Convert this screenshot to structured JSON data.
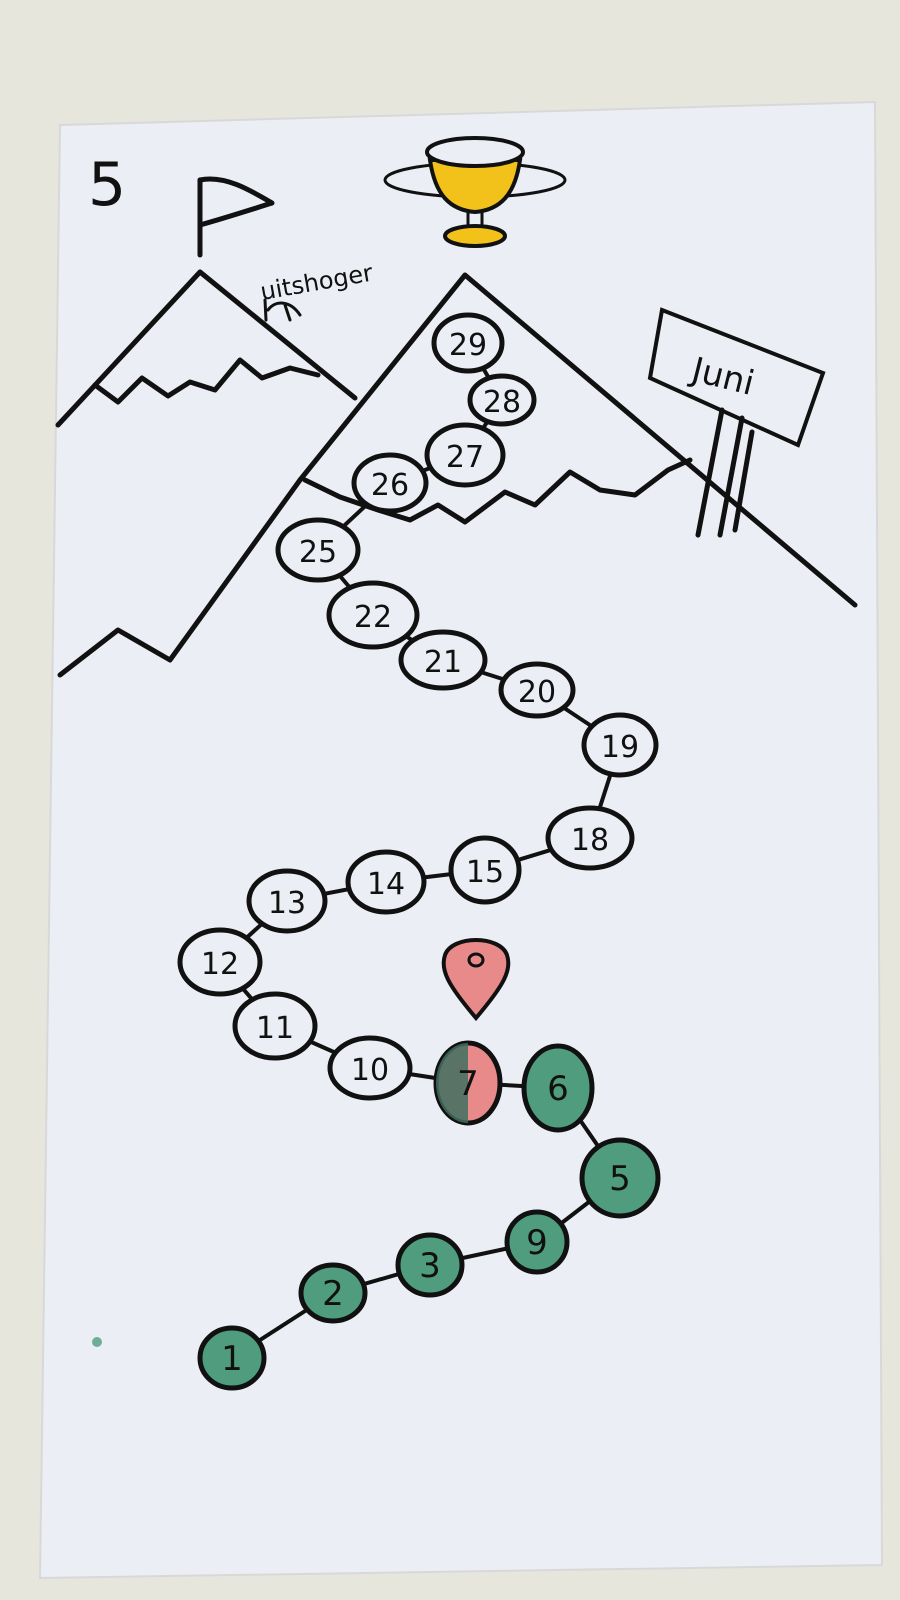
{
  "card": {
    "number": "5",
    "scribble_label": "uitshoger",
    "sign_text": "Juni"
  },
  "colors": {
    "paper": "#eceef5",
    "background": "#e7e6dd",
    "ink": "#111111",
    "done": "#4f9d7e",
    "current": "#e88a8a",
    "trophy": "#f2c21b"
  },
  "icons": {
    "flag": "flag-icon",
    "trophy": "trophy-icon",
    "pin": "map-pin-icon",
    "sign": "signpost-icon"
  },
  "path": {
    "steps": [
      {
        "label": "1",
        "state": "done"
      },
      {
        "label": "2",
        "state": "done"
      },
      {
        "label": "3",
        "state": "done"
      },
      {
        "label": "9",
        "state": "done"
      },
      {
        "label": "5",
        "state": "done"
      },
      {
        "label": "6",
        "state": "done"
      },
      {
        "label": "7",
        "state": "current"
      },
      {
        "label": "10",
        "state": "open"
      },
      {
        "label": "11",
        "state": "open"
      },
      {
        "label": "12",
        "state": "open"
      },
      {
        "label": "13",
        "state": "open"
      },
      {
        "label": "14",
        "state": "open"
      },
      {
        "label": "15",
        "state": "open"
      },
      {
        "label": "18",
        "state": "open"
      },
      {
        "label": "19",
        "state": "open"
      },
      {
        "label": "20",
        "state": "open"
      },
      {
        "label": "21",
        "state": "open"
      },
      {
        "label": "22",
        "state": "open"
      },
      {
        "label": "25",
        "state": "open"
      },
      {
        "label": "26",
        "state": "open"
      },
      {
        "label": "27",
        "state": "open"
      },
      {
        "label": "28",
        "state": "open"
      },
      {
        "label": "29",
        "state": "open"
      }
    ]
  }
}
